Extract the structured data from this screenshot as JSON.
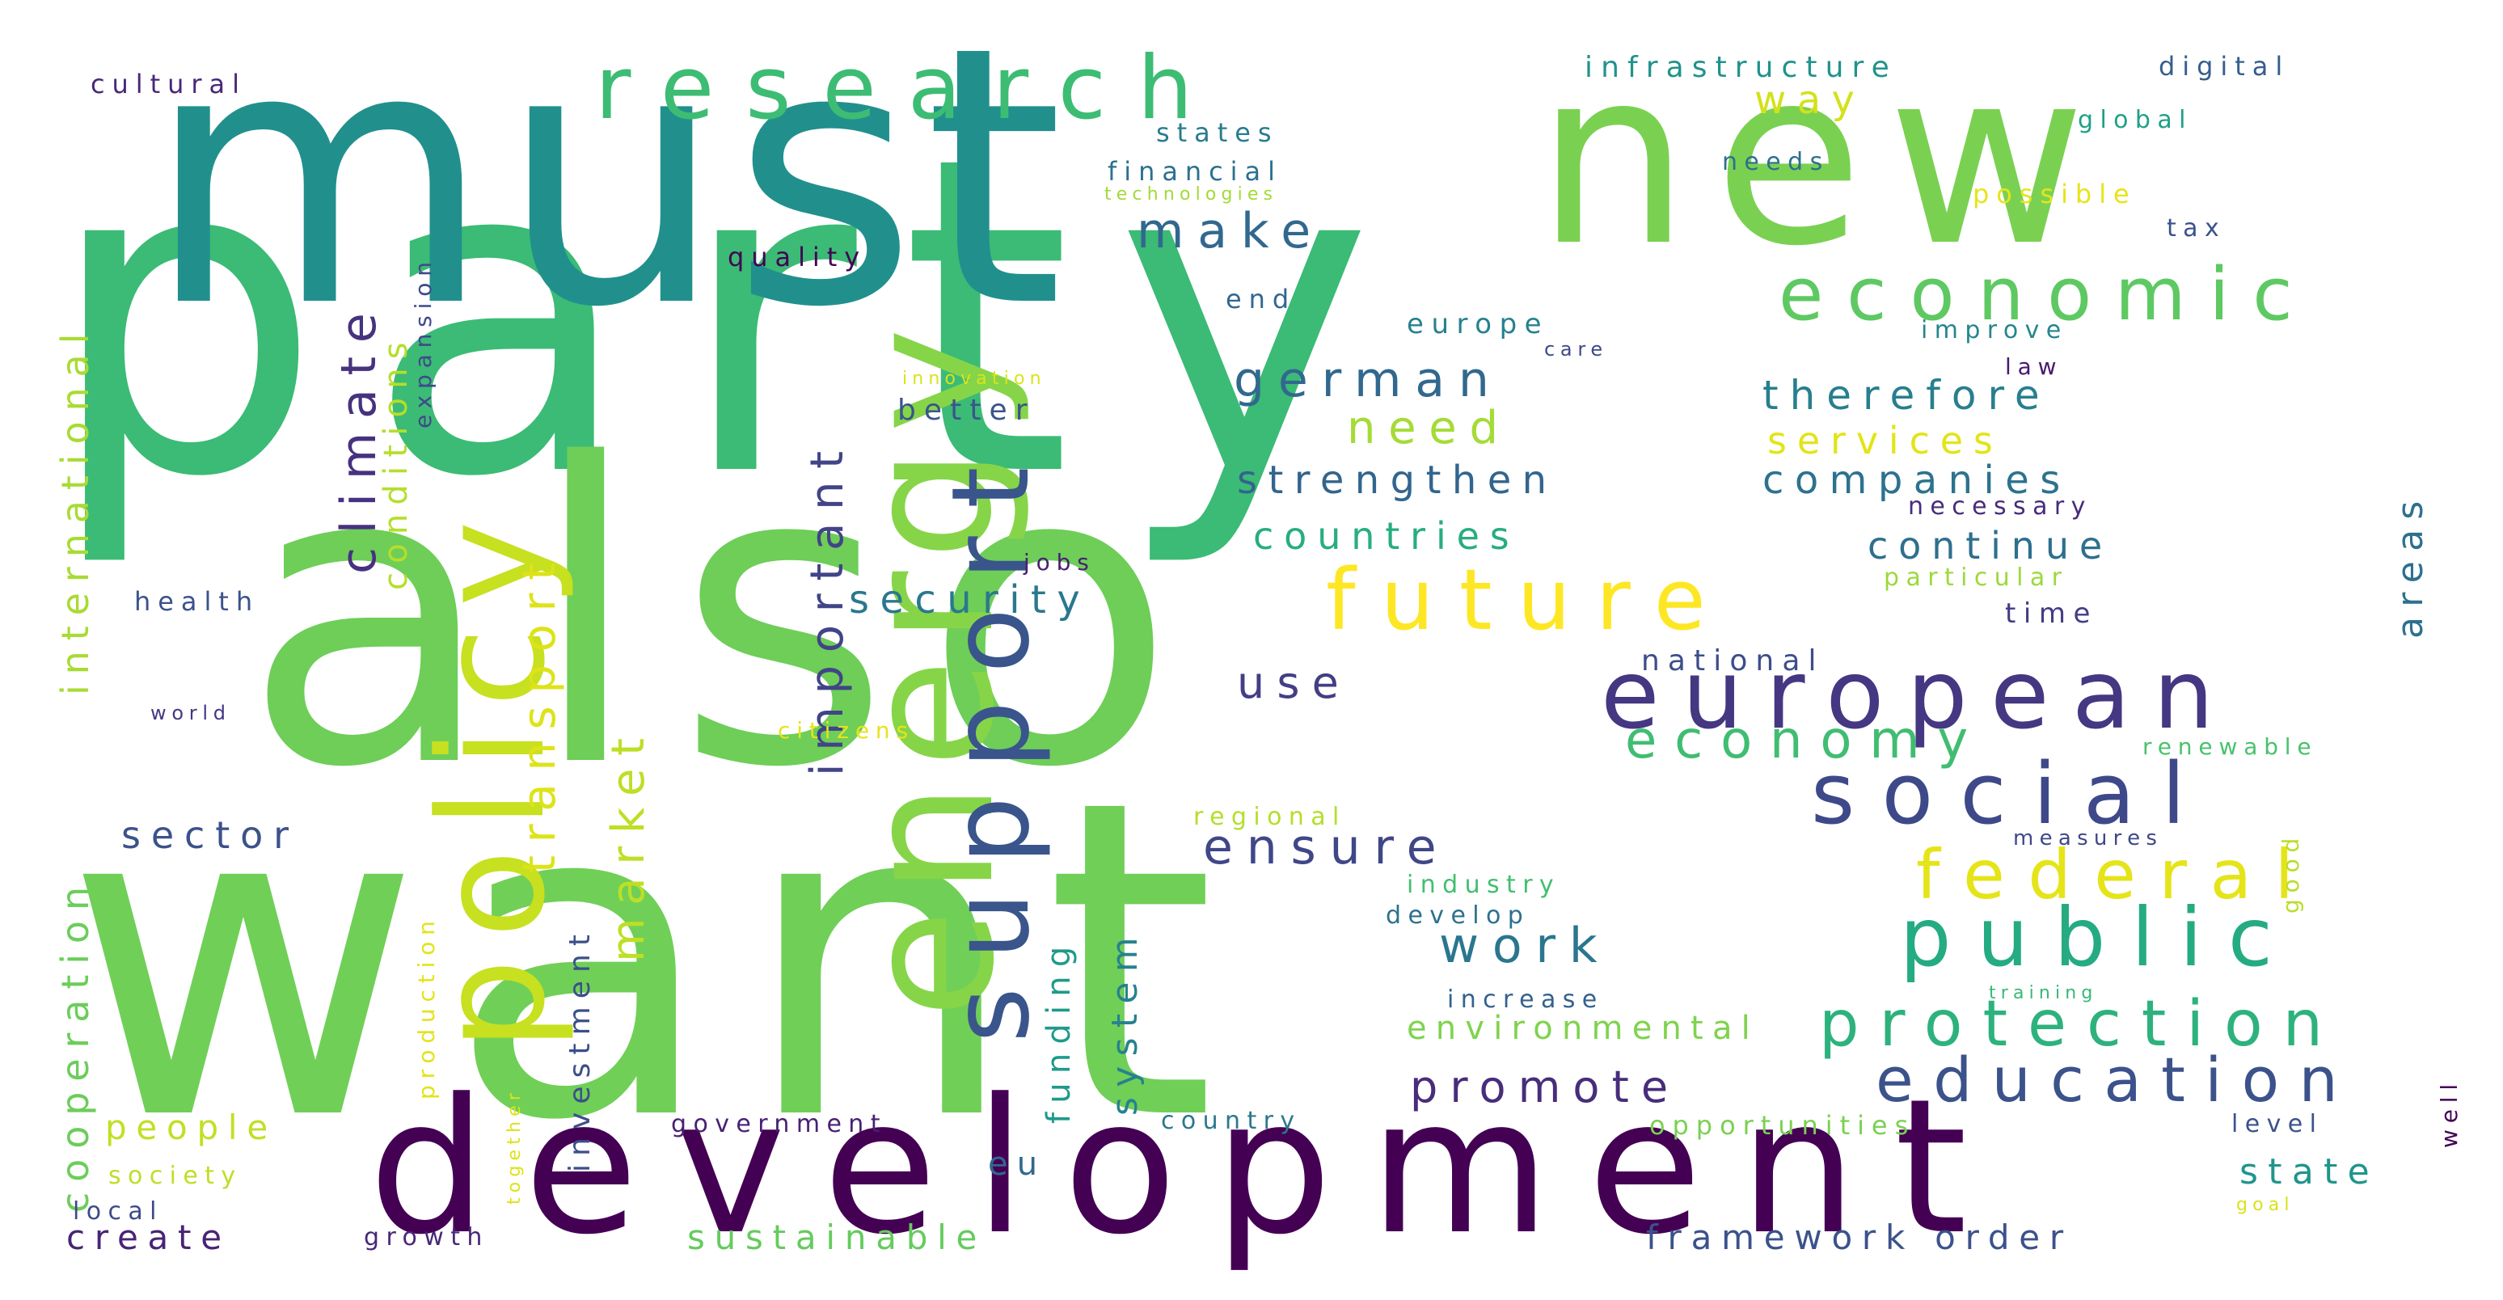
{
  "words": [
    {
      "text": "party",
      "color": "#3bbb75"
    },
    {
      "text": "want",
      "color": "#70cf57"
    },
    {
      "text": "must",
      "color": "#21908d"
    },
    {
      "text": "also",
      "color": "#6ece58"
    },
    {
      "text": "new",
      "color": "#7ad151"
    },
    {
      "text": "energy",
      "color": "#86d549"
    },
    {
      "text": "development",
      "color": "#440154"
    },
    {
      "text": "policy",
      "color": "#c7e020"
    },
    {
      "text": "support",
      "color": "#39558c"
    },
    {
      "text": "research",
      "color": "#3dbc74"
    },
    {
      "text": "european",
      "color": "#453781"
    },
    {
      "text": "future",
      "color": "#fde725"
    },
    {
      "text": "economic",
      "color": "#5ec962"
    },
    {
      "text": "social",
      "color": "#3e4989"
    },
    {
      "text": "public",
      "color": "#25ab82"
    },
    {
      "text": "federal",
      "color": "#e5e419"
    },
    {
      "text": "protection",
      "color": "#2db27d"
    },
    {
      "text": "education",
      "color": "#3b528b"
    },
    {
      "text": "economy",
      "color": "#40bd72"
    },
    {
      "text": "climate",
      "color": "#46327e"
    },
    {
      "text": "important",
      "color": "#414487"
    },
    {
      "text": "transport",
      "color": "#dde318"
    },
    {
      "text": "market",
      "color": "#bddf26"
    },
    {
      "text": "german",
      "color": "#31688e"
    },
    {
      "text": "make",
      "color": "#31688e"
    },
    {
      "text": "need",
      "color": "#a5db36"
    },
    {
      "text": "security",
      "color": "#2a788e"
    },
    {
      "text": "ensure",
      "color": "#3f4788"
    },
    {
      "text": "work",
      "color": "#2a768e"
    },
    {
      "text": "promote",
      "color": "#472d7b"
    },
    {
      "text": "use",
      "color": "#433e85"
    },
    {
      "text": "way",
      "color": "#d2e21b"
    },
    {
      "text": "therefore",
      "color": "#277f8e"
    },
    {
      "text": "services",
      "color": "#e2e418"
    },
    {
      "text": "companies",
      "color": "#2c728e"
    },
    {
      "text": "strengthen",
      "color": "#32658e"
    },
    {
      "text": "countries",
      "color": "#27ad81"
    },
    {
      "text": "continue",
      "color": "#2e6f8e"
    },
    {
      "text": "sector",
      "color": "#3b528b"
    },
    {
      "text": "people",
      "color": "#c2df23"
    },
    {
      "text": "create",
      "color": "#482475"
    },
    {
      "text": "sustainable",
      "color": "#65cb5e"
    },
    {
      "text": "framework order",
      "color": "#3b528b"
    },
    {
      "text": "state",
      "color": "#1f958b"
    },
    {
      "text": "system",
      "color": "#26828e"
    },
    {
      "text": "funding",
      "color": "#1f9a8a"
    },
    {
      "text": "areas",
      "color": "#2d708e"
    },
    {
      "text": "international",
      "color": "#a8db34"
    },
    {
      "text": "cooperation",
      "color": "#6ccd5a"
    },
    {
      "text": "conditions",
      "color": "#b5de2b"
    },
    {
      "text": "investment",
      "color": "#3c4f8a"
    },
    {
      "text": "infrastructure",
      "color": "#20938c"
    },
    {
      "text": "digital",
      "color": "#355e8d"
    },
    {
      "text": "cultural",
      "color": "#482878"
    },
    {
      "text": "states",
      "color": "#287c8e"
    },
    {
      "text": "financial",
      "color": "#2c718e"
    },
    {
      "text": "technologies",
      "color": "#a2da37"
    },
    {
      "text": "quality",
      "color": "#440154"
    },
    {
      "text": "expansion",
      "color": "#3e4a89"
    },
    {
      "text": "end",
      "color": "#31688e"
    },
    {
      "text": "europe",
      "color": "#26818e"
    },
    {
      "text": "innovation",
      "color": "#dae319"
    },
    {
      "text": "better",
      "color": "#39558c"
    },
    {
      "text": "global",
      "color": "#1fa088"
    },
    {
      "text": "needs",
      "color": "#2d708e"
    },
    {
      "text": "possible",
      "color": "#e7e419"
    },
    {
      "text": "tax",
      "color": "#3b528b"
    },
    {
      "text": "improve",
      "color": "#24868e"
    },
    {
      "text": "care",
      "color": "#3e4989"
    },
    {
      "text": "law",
      "color": "#481a6c"
    },
    {
      "text": "necessary",
      "color": "#472c7a"
    },
    {
      "text": "particular",
      "color": "#9bd93c"
    },
    {
      "text": "time",
      "color": "#433d84"
    },
    {
      "text": "jobs",
      "color": "#481f70"
    },
    {
      "text": "health",
      "color": "#3b528b"
    },
    {
      "text": "world",
      "color": "#453781"
    },
    {
      "text": "national",
      "color": "#3d4d8a"
    },
    {
      "text": "citizens",
      "color": "#e7e419"
    },
    {
      "text": "renewable",
      "color": "#4ac16d"
    },
    {
      "text": "regional",
      "color": "#b5de2b"
    },
    {
      "text": "good",
      "color": "#b8de29"
    },
    {
      "text": "measures",
      "color": "#3f4889"
    },
    {
      "text": "industry",
      "color": "#42be71"
    },
    {
      "text": "develop",
      "color": "#2d708e"
    },
    {
      "text": "increase",
      "color": "#34618d"
    },
    {
      "text": "environmental",
      "color": "#7fd34e"
    },
    {
      "text": "training",
      "color": "#38b977"
    },
    {
      "text": "production",
      "color": "#e2e418"
    },
    {
      "text": "together",
      "color": "#dde318"
    },
    {
      "text": "government",
      "color": "#482173"
    },
    {
      "text": "country",
      "color": "#2a788e"
    },
    {
      "text": "opportunities",
      "color": "#7ad151"
    },
    {
      "text": "level",
      "color": "#3b528b"
    },
    {
      "text": "well",
      "color": "#440154"
    },
    {
      "text": "society",
      "color": "#bddf26"
    },
    {
      "text": "local",
      "color": "#3e4a89"
    },
    {
      "text": "eu",
      "color": "#31688e"
    },
    {
      "text": "growth",
      "color": "#482878"
    },
    {
      "text": "goal",
      "color": "#d8e219"
    }
  ]
}
